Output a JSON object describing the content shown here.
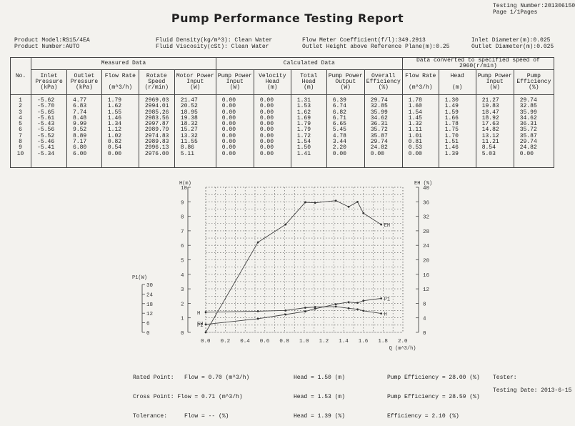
{
  "header": {
    "testing_number": "Testing Number:2013061504",
    "page": "Page 1/1Pages",
    "title": "Pump Performance Testing Report"
  },
  "info": {
    "product_model": "Product Model:RS15/4EA",
    "product_number": "Product Number:AUTO",
    "fluid_density": "Fluid Density(kg/m^3): Clean Water",
    "fluid_viscosity": "Fluid Viscosity(cSt): Clean Water",
    "flow_meter": "Flow Meter Coefficient(f/l):349.2913",
    "outlet_height": "Outlet Height above Reference Plane(m):0.25",
    "inlet_diameter": "Inlet Diameter(m):0.025",
    "outlet_diameter": "Outlet Diameter(m):0.025"
  },
  "table": {
    "group_measured": "Measured Data",
    "group_calculated": "Calculated Data",
    "group_converted": "Data converted to specified speed of  2960(r/min)",
    "columns": [
      "No.",
      "Inlet\nPressure\n(kPa)",
      "Outlet\nPressure\n(kPa)",
      "Flow Rate\n\n(m^3/h)",
      "Rotate\nSpeed\n(r/min)",
      "Motor Power\nInput\n(W)",
      "Pump Power\nInput\n(W)",
      "Velocity\nHead\n(m)",
      "Total\nHead\n(m)",
      "Pump Power\nOutput\n(W)",
      "Overall\nEfficiency\n(%)",
      "Flow Rate\n\n(m^3/h)",
      "Head\n\n(m)",
      "Pump Power\nInput\n(W)",
      "Pump\nEfficiency\n(%)"
    ],
    "cols": [
      [
        "1",
        "2",
        "3",
        "4",
        "5",
        "6",
        "7",
        "8",
        "9",
        "10"
      ],
      [
        "-5.62",
        "-5.70",
        "-5.65",
        "-5.61",
        "-5.43",
        "-5.56",
        "-5.52",
        "-5.46",
        "-5.41",
        "-5.34"
      ],
      [
        "4.77",
        "6.83",
        "7.74",
        "8.48",
        "9.99",
        "9.52",
        "8.89",
        "7.17",
        "6.80",
        "6.00"
      ],
      [
        "1.79",
        "1.62",
        "1.55",
        "1.46",
        "1.34",
        "1.12",
        "1.02",
        "0.82",
        "0.54",
        "0.00"
      ],
      [
        "2969.03",
        "2994.01",
        "2985.26",
        "2983.56",
        "2997.87",
        "2989.79",
        "2974.83",
        "2989.83",
        "2996.13",
        "2976.00"
      ],
      [
        "21.47",
        "20.52",
        "18.95",
        "19.38",
        "18.32",
        "15.27",
        "13.32",
        "11.55",
        "8.86",
        "5.11"
      ],
      [
        "0.00",
        "0.00",
        "0.00",
        "0.00",
        "0.00",
        "0.00",
        "0.00",
        "0.00",
        "0.00",
        "0.00"
      ],
      [
        "0.00",
        "0.00",
        "0.00",
        "0.00",
        "0.00",
        "0.00",
        "0.00",
        "0.00",
        "0.00",
        "0.00"
      ],
      [
        "1.31",
        "1.53",
        "1.62",
        "1.69",
        "1.79",
        "1.79",
        "1.72",
        "1.54",
        "1.50",
        "1.41"
      ],
      [
        "6.39",
        "6.74",
        "6.82",
        "6.71",
        "6.65",
        "5.45",
        "4.78",
        "3.44",
        "2.20",
        "0.00"
      ],
      [
        "29.74",
        "32.85",
        "35.99",
        "34.62",
        "36.31",
        "35.72",
        "35.87",
        "29.74",
        "24.82",
        "0.00"
      ],
      [
        "1.78",
        "1.60",
        "1.54",
        "1.45",
        "1.32",
        "1.11",
        "1.01",
        "0.81",
        "0.53",
        "0.00"
      ],
      [
        "1.30",
        "1.49",
        "1.59",
        "1.66",
        "1.78",
        "1.75",
        "1.70",
        "1.51",
        "1.46",
        "1.39"
      ],
      [
        "21.27",
        "19.83",
        "18.47",
        "18.92",
        "17.63",
        "14.82",
        "13.12",
        "11.21",
        "8.54",
        "5.03"
      ],
      [
        "29.74",
        "32.85",
        "35.99",
        "34.62",
        "36.31",
        "35.72",
        "35.87",
        "29.74",
        "24.82",
        "0.00"
      ]
    ]
  },
  "chart_data": {
    "type": "line",
    "xlabel": "Q (m^3/h)",
    "xlim": [
      0,
      2.0
    ],
    "x_ticks": [
      "0.0",
      "0.2",
      "0.4",
      "0.6",
      "0.8",
      "1.0",
      "1.2",
      "1.4",
      "1.6",
      "1.8",
      "2.0"
    ],
    "left_axis": {
      "label": "H(m)",
      "ylim": [
        0,
        10
      ],
      "ticks": [
        "10",
        "9",
        "8",
        "7",
        "6",
        "5",
        "4",
        "3",
        "2",
        "1",
        "0"
      ]
    },
    "right_axis": {
      "label": "EH (%)",
      "ylim": [
        0,
        40
      ],
      "ticks": [
        "40",
        "36",
        "32",
        "28",
        "24",
        "20",
        "16",
        "12",
        "8",
        "4",
        "0"
      ]
    },
    "power_axis": {
      "label": "P1(W)",
      "ylim": [
        0,
        30
      ],
      "ticks": [
        "30",
        "24",
        "18",
        "12",
        "6",
        "0"
      ]
    },
    "series": [
      {
        "name": "EH",
        "axis": "right",
        "x": [
          0.0,
          0.53,
          0.81,
          1.01,
          1.11,
          1.32,
          1.45,
          1.54,
          1.6,
          1.78
        ],
        "y": [
          0.0,
          24.82,
          29.74,
          35.87,
          35.72,
          36.31,
          34.62,
          35.99,
          32.85,
          29.74
        ]
      },
      {
        "name": "H",
        "axis": "left",
        "x": [
          0.0,
          0.53,
          0.81,
          1.01,
          1.11,
          1.32,
          1.45,
          1.54,
          1.6,
          1.78
        ],
        "y": [
          1.39,
          1.46,
          1.51,
          1.7,
          1.75,
          1.78,
          1.66,
          1.59,
          1.49,
          1.3
        ]
      },
      {
        "name": "P1",
        "axis": "power",
        "x": [
          0.0,
          0.53,
          0.81,
          1.01,
          1.11,
          1.32,
          1.45,
          1.54,
          1.6,
          1.78
        ],
        "y": [
          5.03,
          8.54,
          11.21,
          13.12,
          14.82,
          17.63,
          18.92,
          18.47,
          19.83,
          21.27
        ]
      }
    ],
    "left_markers": [
      "H",
      "EH",
      "P1"
    ],
    "grid": true
  },
  "bottom": {
    "rated_point": "Rated Point:   Flow = 0.70 (m^3/h)",
    "cross_point": "Cross Point: Flow = 0.71 (m^3/h)",
    "tolerance": "Tolerance:     Flow = -- (%)",
    "head_rated": "Head = 1.50 (m)",
    "head_cross": "Head = 1.53 (m)",
    "head_tol": "Head = 1.39 (%)",
    "eff_rated": "Pump Efficiency = 28.00 (%)",
    "eff_cross": "Pump Efficiency = 28.59 (%)",
    "eff_tol": "Efficiency = 2.10 (%)",
    "tester": "Tester:",
    "testing_date": "Testing Date: 2013-6-15"
  }
}
